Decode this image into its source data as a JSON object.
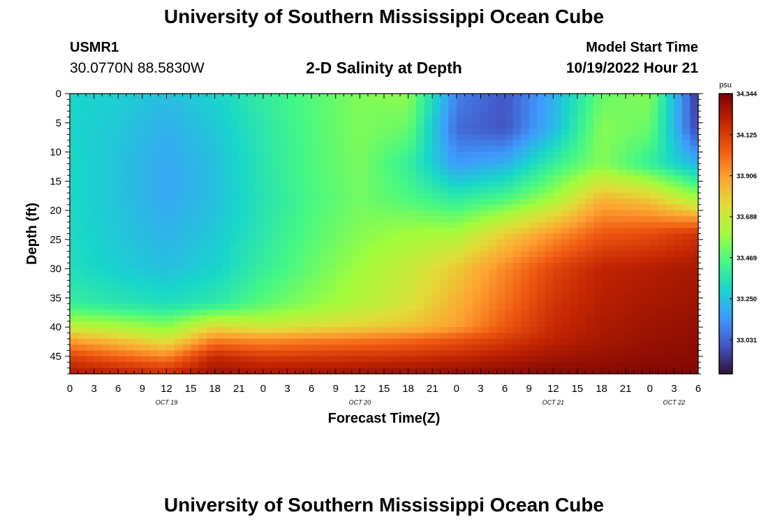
{
  "header": {
    "title": "University of Southern Mississippi Ocean Cube",
    "station": "USMR1",
    "coords": "30.0770N  88.5830W",
    "subtitle": "2-D Salinity at Depth",
    "model_start_label": "Model Start Time",
    "model_start_value": "10/19/2022 Hour 21"
  },
  "footer": {
    "title": "University of Southern Mississippi Ocean Cube"
  },
  "colorbar": {
    "unit": "psu",
    "ticks": [
      "34.344",
      "34.125",
      "33.906",
      "33.688",
      "33.469",
      "33.250",
      "33.031"
    ],
    "min": 32.85,
    "max": 34.344,
    "colors": [
      "#30123b",
      "#4454c4",
      "#3e9bfe",
      "#18d6cb",
      "#46f884",
      "#a2fc3c",
      "#e1dd37",
      "#fea331",
      "#ef5911",
      "#c22402",
      "#7a0403"
    ]
  },
  "chart_data": {
    "type": "heatmap",
    "xlabel": "Forecast Time(Z)",
    "ylabel": "Depth (ft)",
    "x_tick_labels": [
      "0",
      "3",
      "6",
      "9",
      "12",
      "15",
      "18",
      "21",
      "0",
      "3",
      "6",
      "9",
      "12",
      "15",
      "18",
      "21",
      "0",
      "3",
      "6",
      "9",
      "12",
      "15",
      "18",
      "21",
      "0",
      "3",
      "6"
    ],
    "day_labels": [
      {
        "label": "OCT 19",
        "hour": 12
      },
      {
        "label": "OCT 20",
        "hour": 36
      },
      {
        "label": "OCT 21",
        "hour": 60
      },
      {
        "label": "OCT 22",
        "hour": 75
      }
    ],
    "x_range_hours": [
      0,
      78
    ],
    "y_ticks": [
      0,
      5,
      10,
      15,
      20,
      25,
      30,
      35,
      40,
      45
    ],
    "ylim": [
      0,
      48
    ],
    "y_reversed": true,
    "hours": [
      0,
      6,
      12,
      18,
      24,
      30,
      36,
      42,
      48,
      54,
      60,
      66,
      72,
      78
    ],
    "depths": [
      0,
      6,
      12,
      18,
      24,
      30,
      36,
      40,
      42,
      45,
      48
    ],
    "values": [
      [
        33.3,
        33.28,
        33.24,
        33.29,
        33.39,
        33.47,
        33.54,
        33.56,
        33.1,
        33.0,
        33.2,
        33.5,
        33.55,
        32.92
      ],
      [
        33.3,
        33.26,
        33.2,
        33.26,
        33.37,
        33.46,
        33.54,
        33.5,
        33.05,
        33.0,
        33.22,
        33.55,
        33.5,
        32.95
      ],
      [
        33.31,
        33.25,
        33.18,
        33.24,
        33.36,
        33.46,
        33.53,
        33.4,
        33.15,
        33.2,
        33.4,
        33.55,
        33.4,
        33.2
      ],
      [
        33.31,
        33.25,
        33.18,
        33.24,
        33.35,
        33.45,
        33.52,
        33.46,
        33.38,
        33.45,
        33.6,
        33.85,
        33.8,
        33.6
      ],
      [
        33.32,
        33.26,
        33.21,
        33.26,
        33.37,
        33.47,
        33.55,
        33.6,
        33.62,
        33.78,
        33.92,
        34.05,
        34.08,
        34.15
      ],
      [
        33.33,
        33.28,
        33.24,
        33.29,
        33.4,
        33.5,
        33.6,
        33.68,
        33.8,
        33.95,
        34.1,
        34.2,
        34.22,
        34.25
      ],
      [
        33.4,
        33.36,
        33.33,
        33.37,
        33.48,
        33.56,
        33.64,
        33.72,
        33.86,
        34.0,
        34.15,
        34.22,
        34.25,
        34.27
      ],
      [
        33.66,
        33.62,
        33.56,
        33.75,
        33.7,
        33.74,
        33.78,
        33.82,
        33.9,
        34.05,
        34.18,
        34.24,
        34.27,
        34.29
      ],
      [
        33.88,
        33.8,
        33.7,
        33.95,
        33.92,
        33.95,
        33.97,
        34.0,
        34.05,
        34.12,
        34.2,
        34.25,
        34.28,
        34.3
      ],
      [
        34.1,
        34.02,
        33.95,
        34.18,
        34.12,
        34.13,
        34.14,
        34.15,
        34.18,
        34.22,
        34.26,
        34.28,
        34.3,
        34.31
      ],
      [
        34.25,
        34.22,
        34.18,
        34.28,
        34.26,
        34.27,
        34.28,
        34.29,
        34.3,
        34.31,
        34.32,
        34.32,
        34.33,
        34.33
      ]
    ]
  }
}
